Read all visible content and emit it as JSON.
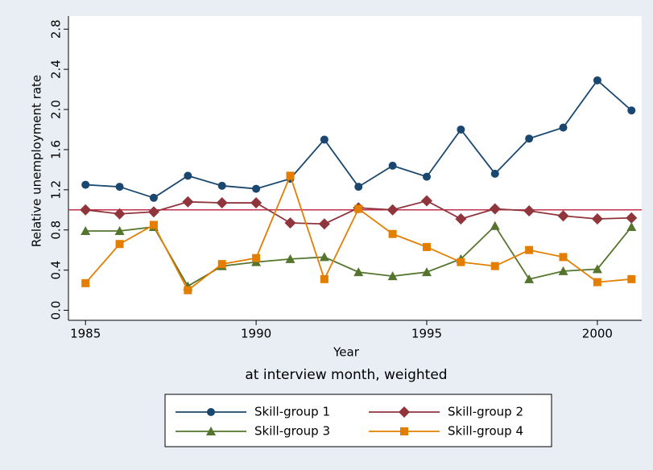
{
  "chart_data": {
    "type": "line",
    "x_label": "Year",
    "note": "at interview month, weighted",
    "y_label": "Relative unemployment rate",
    "x": [
      1985,
      1986,
      1987,
      1988,
      1989,
      1990,
      1991,
      1992,
      1993,
      1994,
      1995,
      1996,
      1997,
      1998,
      1999,
      2000,
      2001
    ],
    "series": [
      {
        "name": "Skill-group 1",
        "color": "#1a476f",
        "marker": "circle",
        "values": [
          1.25,
          1.23,
          1.12,
          1.34,
          1.24,
          1.21,
          1.31,
          1.7,
          1.23,
          1.44,
          1.33,
          1.8,
          1.36,
          1.71,
          1.82,
          2.29,
          1.99
        ]
      },
      {
        "name": "Skill-group 2",
        "color": "#90353b",
        "marker": "diamond",
        "values": [
          1.0,
          0.96,
          0.98,
          1.08,
          1.07,
          1.07,
          0.87,
          0.86,
          1.02,
          1.0,
          1.09,
          0.91,
          1.01,
          0.99,
          0.94,
          0.91,
          0.92
        ]
      },
      {
        "name": "Skill-group 3",
        "color": "#55752f",
        "marker": "triangle",
        "values": [
          0.79,
          0.79,
          0.83,
          0.24,
          0.44,
          0.48,
          0.51,
          0.53,
          0.38,
          0.34,
          0.38,
          0.51,
          0.84,
          0.31,
          0.39,
          0.41,
          0.83
        ]
      },
      {
        "name": "Skill-group 4",
        "color": "#e37e00",
        "marker": "square",
        "values": [
          0.27,
          0.66,
          0.85,
          0.2,
          0.46,
          0.52,
          1.34,
          0.31,
          1.01,
          0.76,
          0.63,
          0.48,
          0.44,
          0.6,
          0.53,
          0.28,
          0.31
        ]
      }
    ],
    "reference_line": {
      "value": 1,
      "color": "#c0304a"
    },
    "xlim": [
      1984.5,
      2001.3
    ],
    "xticks": [
      1985,
      1990,
      1995,
      2000
    ],
    "ylim": [
      -0.1,
      2.93
    ],
    "yticks": [
      {
        "value": 0,
        "label": "0.0"
      },
      0.4,
      0.8,
      1.2,
      1.6,
      {
        "value": 2,
        "label": "2.0"
      },
      2.4,
      2.8
    ],
    "grid": false
  }
}
